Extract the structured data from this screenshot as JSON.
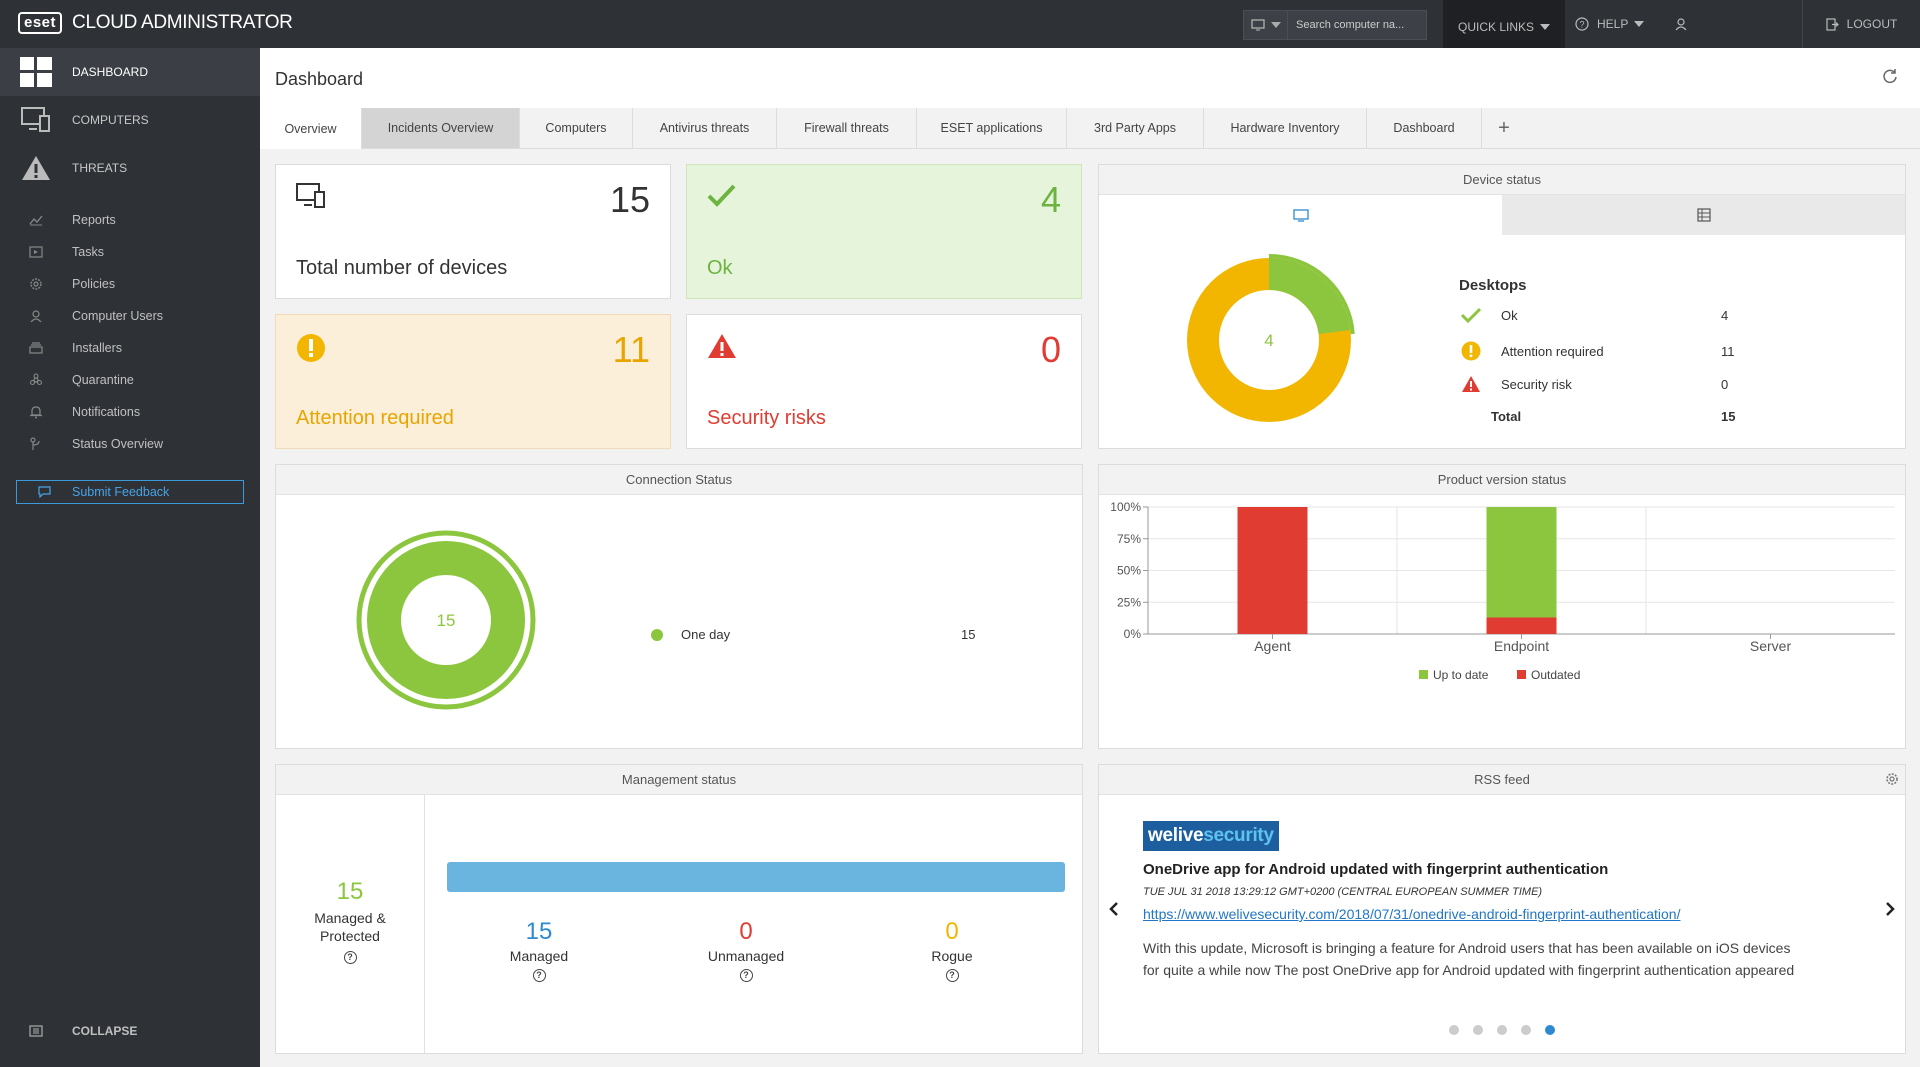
{
  "app": {
    "logo": "eset",
    "title": "CLOUD ADMINISTRATOR"
  },
  "topbar": {
    "search_placeholder": "Search computer na...",
    "quick_links": "QUICK LINKS",
    "help": "HELP",
    "logout": "LOGOUT"
  },
  "sidebar": {
    "main": [
      {
        "label": "DASHBOARD",
        "icon": "dashboard-icon",
        "active": true
      },
      {
        "label": "COMPUTERS",
        "icon": "computers-icon",
        "active": false
      },
      {
        "label": "THREATS",
        "icon": "threats-icon",
        "active": false
      }
    ],
    "sub": [
      {
        "label": "Reports",
        "icon": "reports-icon"
      },
      {
        "label": "Tasks",
        "icon": "tasks-icon"
      },
      {
        "label": "Policies",
        "icon": "policies-icon"
      },
      {
        "label": "Computer Users",
        "icon": "user-icon"
      },
      {
        "label": "Installers",
        "icon": "installers-icon"
      },
      {
        "label": "Quarantine",
        "icon": "quarantine-icon"
      },
      {
        "label": "Notifications",
        "icon": "notifications-icon"
      },
      {
        "label": "Status Overview",
        "icon": "status-overview-icon"
      }
    ],
    "feedback": "Submit Feedback",
    "collapse": "COLLAPSE"
  },
  "page": {
    "title": "Dashboard",
    "tabs": [
      "Overview",
      "Incidents Overview",
      "Computers",
      "Antivirus threats",
      "Firewall threats",
      "ESET applications",
      "3rd Party Apps",
      "Hardware Inventory",
      "Dashboard"
    ],
    "active_tab": "Overview",
    "add_tab": "+"
  },
  "kpis": {
    "total": {
      "value": "15",
      "label": "Total number of devices"
    },
    "ok": {
      "value": "4",
      "label": "Ok"
    },
    "attention": {
      "value": "11",
      "label": "Attention required"
    },
    "risks": {
      "value": "0",
      "label": "Security risks"
    }
  },
  "device_status": {
    "title": "Device status",
    "center_value": "4",
    "group_title": "Desktops",
    "rows": [
      {
        "label": "Ok",
        "value": "4"
      },
      {
        "label": "Attention required",
        "value": "11"
      },
      {
        "label": "Security risk",
        "value": "0"
      }
    ],
    "total_label": "Total",
    "total_value": "15"
  },
  "connection_status": {
    "title": "Connection Status",
    "center_value": "15",
    "legend_label": "One day",
    "legend_value": "15"
  },
  "product_version": {
    "title": "Product version status"
  },
  "management_status": {
    "title": "Management status",
    "protected_value": "15",
    "protected_label_1": "Managed &",
    "protected_label_2": "Protected",
    "managed_value": "15",
    "managed_label": "Managed",
    "unmanaged_value": "0",
    "unmanaged_label": "Unmanaged",
    "rogue_value": "0",
    "rogue_label": "Rogue",
    "managed_fraction": 1.0
  },
  "rss": {
    "title": "RSS feed",
    "brand_1": "welive",
    "brand_2": "security",
    "headline": "OneDrive app for Android updated with fingerprint authentication",
    "date": "TUE JUL 31 2018 13:29:12 GMT+0200 (CENTRAL EUROPEAN SUMMER TIME)",
    "link": "https://www.welivesecurity.com/2018/07/31/onedrive-android-fingerprint-authentication/",
    "body_1": "With this update, Microsoft is bringing a feature for Android users that has been available on iOS devices",
    "body_2": "for quite a while now The post OneDrive app for Android updated with fingerprint authentication appeared",
    "page_count": 5,
    "current_page": 5
  },
  "colors": {
    "ok": "#8cc63f",
    "attention": "#f2b600",
    "risk": "#e03c31",
    "accent": "#2e8ad0",
    "managed_bar": "#6ab4e0"
  },
  "chart_data": {
    "type": "bar",
    "stacked": true,
    "categories": [
      "Agent",
      "Endpoint",
      "Server"
    ],
    "series": [
      {
        "name": "Up to date",
        "values": [
          0,
          87,
          0
        ],
        "color": "#8cc63f"
      },
      {
        "name": "Outdated",
        "values": [
          100,
          13,
          0
        ],
        "color": "#e03c31"
      }
    ],
    "y_ticks": [
      "100%",
      "75%",
      "50%",
      "25%",
      "0%"
    ],
    "ylim": [
      0,
      100
    ],
    "grid": true,
    "legend_position": "bottom"
  }
}
